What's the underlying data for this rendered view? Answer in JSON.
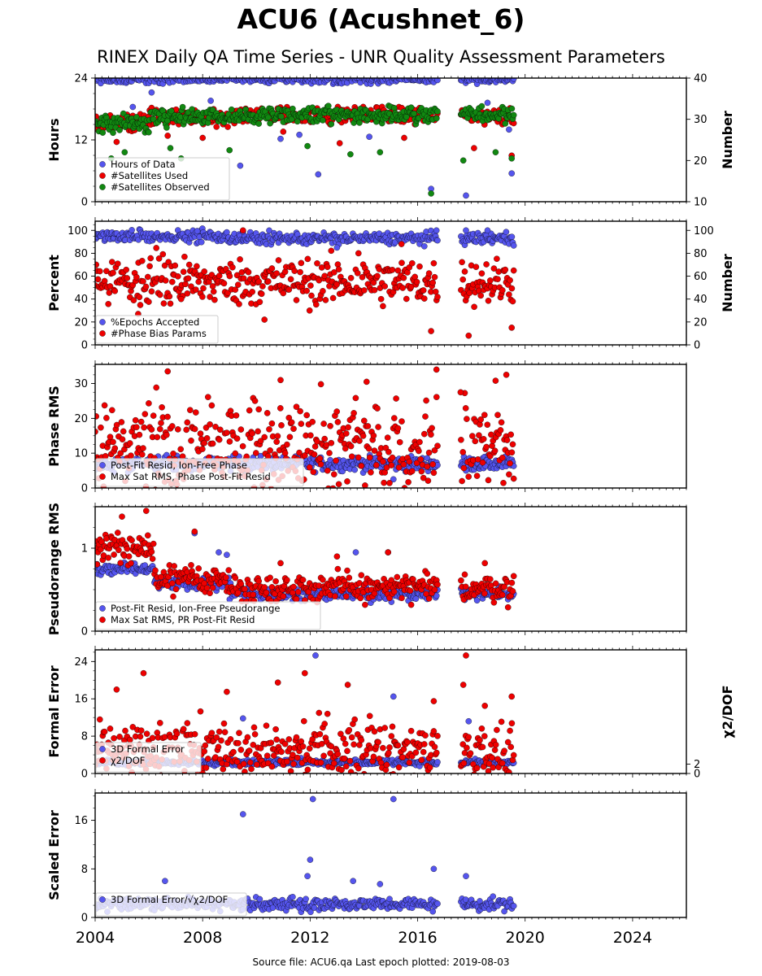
{
  "figure": {
    "title": "ACU6 (Acushnet_6)",
    "subtitle": "RINEX Daily QA Time Series - UNR Quality Assessment Parameters",
    "footer": "Source file: ACU6.qa Last epoch plotted: 2019-08-03"
  },
  "colors": {
    "blue": "#5555ee",
    "red": "#ee0000",
    "green": "#118811"
  },
  "chart_data": [
    {
      "type": "scatter",
      "xlim": [
        2004.0,
        2026.0
      ],
      "ylabel": "Hours",
      "ylim": [
        0,
        24
      ],
      "yticks": [
        0,
        12,
        24
      ],
      "y2label": "Number",
      "y2lim": [
        10,
        40
      ],
      "y2ticks": [
        10,
        20,
        30,
        40
      ],
      "legend": "bottom-left",
      "series": [
        {
          "name": "Hours of Data",
          "color": "blue",
          "axis": "left",
          "base": 23.8,
          "spread": 0.4,
          "outliers": [
            [
              2005.4,
              18.4
            ],
            [
              2006.1,
              21.2
            ],
            [
              2008.3,
              19.6
            ],
            [
              2009.4,
              7.0
            ],
            [
              2010.9,
              12.2
            ],
            [
              2011.6,
              13.0
            ],
            [
              2012.3,
              5.3
            ],
            [
              2014.2,
              12.6
            ],
            [
              2016.5,
              2.5
            ],
            [
              2017.8,
              1.2
            ],
            [
              2018.6,
              19.2
            ],
            [
              2019.4,
              14.0
            ],
            [
              2019.5,
              5.5
            ]
          ]
        },
        {
          "name": "#Satellites Used",
          "color": "red",
          "axis": "right",
          "base": 31.0,
          "spread": 1.0,
          "outliers": [
            [
              2004.8,
              24.5
            ],
            [
              2006.7,
              26.0
            ],
            [
              2008.0,
              25.5
            ],
            [
              2011.0,
              27.0
            ],
            [
              2013.1,
              24.2
            ],
            [
              2015.5,
              25.5
            ],
            [
              2018.1,
              23.0
            ],
            [
              2019.5,
              21.2
            ]
          ]
        },
        {
          "name": "#Satellites Observed",
          "color": "green",
          "axis": "right",
          "base": 31.0,
          "spread": 1.0,
          "outliers": [
            [
              2004.6,
              20.5
            ],
            [
              2005.1,
              22.0
            ],
            [
              2006.8,
              23.0
            ],
            [
              2007.2,
              20.5
            ],
            [
              2009.0,
              22.5
            ],
            [
              2011.9,
              23.5
            ],
            [
              2013.5,
              21.5
            ],
            [
              2014.6,
              22.0
            ],
            [
              2016.5,
              12.0
            ],
            [
              2017.7,
              20.0
            ],
            [
              2018.9,
              22.0
            ],
            [
              2019.5,
              20.5
            ]
          ]
        }
      ]
    },
    {
      "type": "scatter",
      "xlim": [
        2004.0,
        2026.0
      ],
      "ylabel": "Percent",
      "ylim": [
        0,
        108
      ],
      "yticks": [
        0,
        20,
        40,
        60,
        80,
        100
      ],
      "y2label": "Number",
      "y2ticks": [
        0,
        20,
        40,
        60,
        80,
        100
      ],
      "legend": "bottom-left",
      "series": [
        {
          "name": "%Epochs Accepted",
          "color": "blue",
          "axis": "left",
          "base": 95.0,
          "spread": 2.5,
          "outliers": [
            [
              2007.8,
              99.5
            ],
            [
              2009.5,
              99.0
            ],
            [
              2013.0,
              85.0
            ],
            [
              2016.7,
              100.0
            ],
            [
              2017.8,
              100.0
            ],
            [
              2018.6,
              100.0
            ]
          ]
        },
        {
          "name": "#Phase Bias Params",
          "color": "red",
          "axis": "left",
          "base": 55.0,
          "spread": 10.0,
          "outliers": [
            [
              2005.6,
              27.0
            ],
            [
              2007.2,
              40.0
            ],
            [
              2009.5,
              100.0
            ],
            [
              2010.3,
              22.0
            ],
            [
              2013.8,
              80.0
            ],
            [
              2015.4,
              88.0
            ],
            [
              2016.5,
              12.0
            ],
            [
              2017.9,
              8.0
            ],
            [
              2019.5,
              15.0
            ]
          ]
        }
      ]
    },
    {
      "type": "scatter",
      "xlim": [
        2004.0,
        2026.0
      ],
      "ylabel": "Phase RMS",
      "ylim": [
        0,
        35.5
      ],
      "yticks": [
        0,
        10,
        20,
        30
      ],
      "legend": "bottom-left",
      "series": [
        {
          "name": "Post-Fit Resid, Ion-Free Phase",
          "color": "blue",
          "axis": "left",
          "base": 7.0,
          "spread": 1.0,
          "outliers": [
            [
              2015.1,
              2.5
            ],
            [
              2017.8,
              5.0
            ]
          ]
        },
        {
          "name": "Max Sat RMS, Phase Post-Fit Resid",
          "color": "red",
          "axis": "left",
          "base": 12.0,
          "spread": 6.0,
          "outliers": [
            [
              2006.7,
              33.5
            ],
            [
              2010.9,
              31.0
            ],
            [
              2012.4,
              29.8
            ],
            [
              2016.7,
              34.0
            ],
            [
              2019.3,
              32.5
            ],
            [
              2018.9,
              30.8
            ],
            [
              2017.6,
              27.5
            ],
            [
              2014.1,
              30.5
            ]
          ]
        }
      ]
    },
    {
      "type": "scatter",
      "xlim": [
        2004.0,
        2026.0
      ],
      "ylabel": "Pseudorange RMS",
      "ylim": [
        0,
        1.5
      ],
      "yticks": [
        0,
        1
      ],
      "legend": "bottom-left",
      "series": [
        {
          "name": "Post-Fit Resid, Ion-Free Pseudorange",
          "color": "blue",
          "axis": "left",
          "base": 0.45,
          "spread": 0.04,
          "outliers": [
            [
              2007.7,
              1.18
            ],
            [
              2008.6,
              0.95
            ],
            [
              2008.9,
              0.92
            ],
            [
              2013.7,
              0.95
            ],
            [
              2014.9,
              0.95
            ]
          ]
        },
        {
          "name": "Max Sat RMS, PR Post-Fit Resid",
          "color": "red",
          "axis": "left",
          "base": 0.52,
          "spread": 0.08,
          "outliers": [
            [
              2005.9,
              1.45
            ],
            [
              2005.0,
              1.38
            ],
            [
              2007.7,
              1.2
            ],
            [
              2010.9,
              0.82
            ],
            [
              2013.0,
              0.9
            ],
            [
              2014.9,
              0.95
            ],
            [
              2018.5,
              0.82
            ]
          ]
        }
      ]
    },
    {
      "type": "scatter",
      "xlim": [
        2004.0,
        2026.0
      ],
      "ylabel": "Formal Error",
      "ylim": [
        0,
        26.5
      ],
      "yticks": [
        0,
        8,
        16,
        24
      ],
      "y2label": "χ2/DOF",
      "y2ticks": [
        0,
        2
      ],
      "legend": "bottom-left",
      "series": [
        {
          "name": "3D Formal Error",
          "color": "blue",
          "axis": "left",
          "base": 2.4,
          "spread": 0.3,
          "outliers": [
            [
              2012.2,
              25.3
            ],
            [
              2015.1,
              16.5
            ],
            [
              2009.5,
              11.8
            ],
            [
              2017.9,
              11.2
            ]
          ]
        },
        {
          "name": "χ2/DOF",
          "color": "red",
          "axis": "left",
          "base": 5.0,
          "spread": 3.0,
          "outliers": [
            [
              2005.8,
              21.5
            ],
            [
              2004.8,
              18.0
            ],
            [
              2008.9,
              17.5
            ],
            [
              2010.8,
              19.5
            ],
            [
              2011.8,
              21.5
            ],
            [
              2017.8,
              25.3
            ],
            [
              2017.7,
              19.0
            ],
            [
              2013.4,
              19.0
            ],
            [
              2016.6,
              15.5
            ],
            [
              2018.5,
              14.5
            ],
            [
              2019.5,
              16.5
            ]
          ]
        }
      ]
    },
    {
      "type": "scatter",
      "xlim": [
        2004.0,
        2026.0
      ],
      "ylabel": "Scaled Error",
      "ylim": [
        0,
        20.5
      ],
      "yticks": [
        0,
        8,
        16
      ],
      "xticks": [
        2004,
        2008,
        2012,
        2016,
        2020,
        2024
      ],
      "legend": "bottom-left",
      "series": [
        {
          "name": "3D Formal Error/√χ2/DOF",
          "color": "blue",
          "axis": "left",
          "base": 2.2,
          "spread": 0.5,
          "outliers": [
            [
              2009.5,
              17.0
            ],
            [
              2012.1,
              19.5
            ],
            [
              2015.1,
              19.5
            ],
            [
              2012.0,
              9.5
            ],
            [
              2016.6,
              8.0
            ],
            [
              2017.8,
              6.8
            ],
            [
              2006.6,
              6.0
            ],
            [
              2013.6,
              6.0
            ],
            [
              2014.6,
              5.5
            ],
            [
              2011.9,
              6.8
            ]
          ]
        }
      ]
    }
  ]
}
